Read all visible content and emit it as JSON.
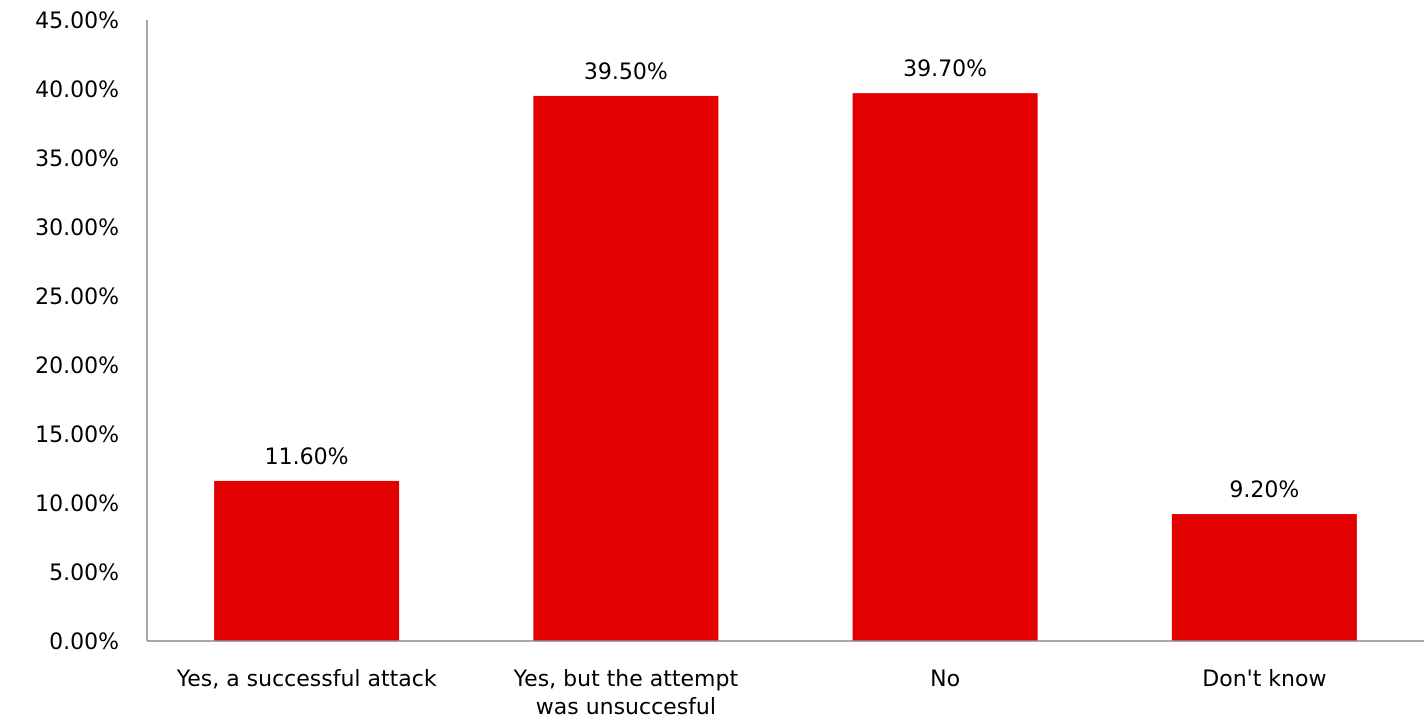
{
  "chart_data": {
    "type": "bar",
    "title": "",
    "xlabel": "",
    "ylabel": "",
    "categories": [
      [
        "Yes, a successful attack"
      ],
      [
        "Yes, but the attempt",
        "was unsuccesful"
      ],
      [
        "No"
      ],
      [
        "Don't know"
      ]
    ],
    "values": [
      11.6,
      39.5,
      39.7,
      9.2
    ],
    "data_labels": [
      "11.60%",
      "39.50%",
      "39.70%",
      "9.20%"
    ],
    "ylim": [
      0,
      45
    ],
    "yticks": [
      0,
      5,
      10,
      15,
      20,
      25,
      30,
      35,
      40,
      45
    ],
    "ytick_labels": [
      "0.00%",
      "5.00%",
      "10.00%",
      "15.00%",
      "20.00%",
      "25.00%",
      "30.00%",
      "35.00%",
      "40.00%",
      "45.00%"
    ],
    "grid": false,
    "legend": "none",
    "bar_color": "#e30000"
  }
}
